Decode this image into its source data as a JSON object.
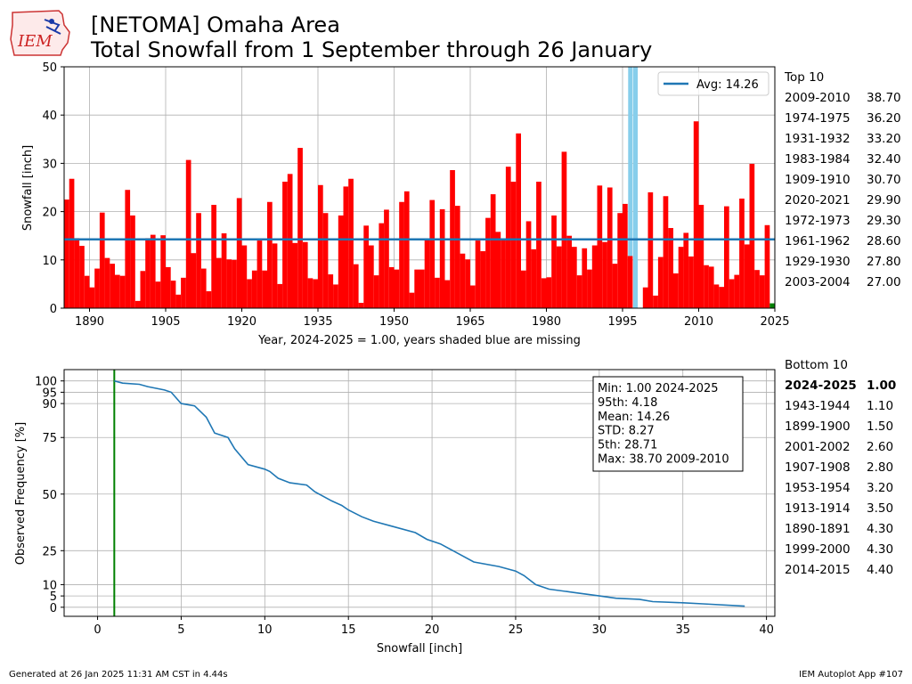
{
  "logo_text": "IEM",
  "title_line1": "[NETOMA] Omaha Area",
  "title_line2": "Total Snowfall from 1 September through 26 January",
  "colors": {
    "bars": "#ff0000",
    "current_bar": "#008000",
    "missing": "#87ceeb",
    "avg_line": "#1f77b4",
    "cdf_line": "#1f77b4",
    "min_line": "#008000"
  },
  "top10": {
    "heading": "Top 10",
    "rows": [
      {
        "season": "2009-2010",
        "value": "38.70"
      },
      {
        "season": "1974-1975",
        "value": "36.20"
      },
      {
        "season": "1931-1932",
        "value": "33.20"
      },
      {
        "season": "1983-1984",
        "value": "32.40"
      },
      {
        "season": "1909-1910",
        "value": "30.70"
      },
      {
        "season": "2020-2021",
        "value": "29.90"
      },
      {
        "season": "1972-1973",
        "value": "29.30"
      },
      {
        "season": "1961-1962",
        "value": "28.60"
      },
      {
        "season": "1929-1930",
        "value": "27.80"
      },
      {
        "season": "2003-2004",
        "value": "27.00"
      }
    ]
  },
  "bottom10": {
    "heading": "Bottom 10",
    "rows": [
      {
        "season": "2024-2025",
        "value": "1.00",
        "bold": true
      },
      {
        "season": "1943-1944",
        "value": "1.10"
      },
      {
        "season": "1899-1900",
        "value": "1.50"
      },
      {
        "season": "2001-2002",
        "value": "2.60"
      },
      {
        "season": "1907-1908",
        "value": "2.80"
      },
      {
        "season": "1953-1954",
        "value": "3.20"
      },
      {
        "season": "1913-1914",
        "value": "3.50"
      },
      {
        "season": "1890-1891",
        "value": "4.30"
      },
      {
        "season": "1999-2000",
        "value": "4.30"
      },
      {
        "season": "2014-2015",
        "value": "4.40"
      }
    ]
  },
  "footer": {
    "left": "Generated at 26 Jan 2025 11:31 AM CST in 4.44s",
    "right": "IEM Autoplot App #107"
  },
  "chart_data": [
    {
      "type": "bar",
      "ylabel": "Snowfall [inch]",
      "xlabel": "Year, 2024-2025 = 1.00, years shaded blue are missing",
      "xlim": [
        1885,
        2025
      ],
      "ylim": [
        0,
        50
      ],
      "xticks": [
        1890,
        1905,
        1920,
        1935,
        1950,
        1965,
        1980,
        1995,
        2010,
        2025
      ],
      "yticks": [
        0,
        10,
        20,
        30,
        40,
        50
      ],
      "grid": true,
      "legend": {
        "label": "Avg: 14.26",
        "position": "top-right"
      },
      "average": 14.26,
      "missing_years": [
        1996,
        1997
      ],
      "start_year": 1885,
      "values": [
        22.5,
        26.8,
        14.5,
        12.9,
        6.7,
        4.3,
        8.2,
        19.8,
        10.4,
        9.2,
        6.9,
        6.7,
        24.5,
        19.2,
        1.5,
        7.7,
        14.5,
        15.2,
        5.5,
        15.1,
        8.5,
        5.7,
        2.8,
        6.3,
        30.7,
        11.4,
        19.7,
        8.2,
        3.5,
        21.4,
        10.4,
        15.5,
        10.1,
        10.0,
        22.8,
        13.0,
        6.0,
        7.8,
        14.0,
        7.8,
        22.0,
        13.4,
        5.0,
        26.2,
        27.8,
        13.5,
        33.2,
        13.7,
        6.2,
        6.0,
        25.5,
        19.7,
        7.0,
        4.9,
        19.2,
        25.2,
        26.8,
        9.1,
        1.1,
        17.1,
        13.0,
        6.8,
        17.6,
        20.4,
        8.5,
        8.0,
        22.0,
        24.2,
        3.2,
        8.0,
        8.0,
        14.3,
        22.4,
        6.3,
        20.5,
        5.8,
        28.6,
        21.2,
        11.3,
        10.1,
        4.7,
        14.0,
        11.8,
        18.7,
        23.6,
        15.8,
        14.3,
        29.3,
        26.2,
        36.2,
        7.8,
        18.0,
        12.2,
        26.2,
        6.2,
        6.4,
        19.2,
        12.8,
        32.4,
        15.0,
        12.7,
        6.8,
        12.4,
        8.0,
        13.0,
        25.4,
        13.7,
        25.0,
        9.2,
        19.7,
        21.6,
        10.8,
        0,
        0,
        4.3,
        24.0,
        2.6,
        10.6,
        23.2,
        16.6,
        7.2,
        12.7,
        15.6,
        10.7,
        38.7,
        21.4,
        8.9,
        8.6,
        4.9,
        4.4,
        21.1,
        6.0,
        6.9,
        22.7,
        13.2,
        29.9,
        7.9,
        6.8,
        17.2,
        1.0
      ]
    },
    {
      "type": "line",
      "ylabel": "Observed Frequency [%]",
      "xlabel": "Snowfall [inch]",
      "xlim": [
        -2,
        40.5
      ],
      "ylim": [
        -4,
        105
      ],
      "xticks": [
        0,
        5,
        10,
        15,
        20,
        25,
        30,
        35,
        40
      ],
      "yticks": [
        0,
        5,
        10,
        25,
        50,
        75,
        90,
        95,
        100
      ],
      "grid": true,
      "min_marker_x": 1.0,
      "points": [
        [
          1.0,
          100
        ],
        [
          1.5,
          99
        ],
        [
          2.5,
          98.5
        ],
        [
          3.0,
          97.5
        ],
        [
          4.0,
          96
        ],
        [
          4.4,
          95
        ],
        [
          5.0,
          90
        ],
        [
          5.8,
          89
        ],
        [
          6.5,
          84
        ],
        [
          7.0,
          77
        ],
        [
          7.8,
          75
        ],
        [
          8.2,
          70
        ],
        [
          9.0,
          63
        ],
        [
          10.0,
          61
        ],
        [
          10.3,
          60
        ],
        [
          10.8,
          57
        ],
        [
          11.5,
          55
        ],
        [
          12.5,
          54
        ],
        [
          13.0,
          51
        ],
        [
          14.0,
          47
        ],
        [
          14.6,
          45
        ],
        [
          15.0,
          43
        ],
        [
          15.8,
          40
        ],
        [
          16.5,
          38
        ],
        [
          17.5,
          36
        ],
        [
          19.0,
          33
        ],
        [
          19.7,
          30
        ],
        [
          20.5,
          28
        ],
        [
          21.5,
          24
        ],
        [
          22.5,
          20
        ],
        [
          24.0,
          18
        ],
        [
          25.0,
          16
        ],
        [
          25.5,
          14
        ],
        [
          26.2,
          10
        ],
        [
          27.0,
          8
        ],
        [
          28.5,
          6.5
        ],
        [
          30.0,
          5
        ],
        [
          31.0,
          4
        ],
        [
          32.4,
          3.5
        ],
        [
          33.2,
          2.5
        ],
        [
          35.0,
          2
        ],
        [
          36.2,
          1.5
        ],
        [
          38.7,
          0.5
        ]
      ],
      "stats_box": [
        "Min: 1.00 2024-2025",
        "95th: 4.18",
        "Mean: 14.26",
        "STD: 8.27",
        "5th: 28.71",
        "Max: 38.70 2009-2010"
      ]
    }
  ]
}
